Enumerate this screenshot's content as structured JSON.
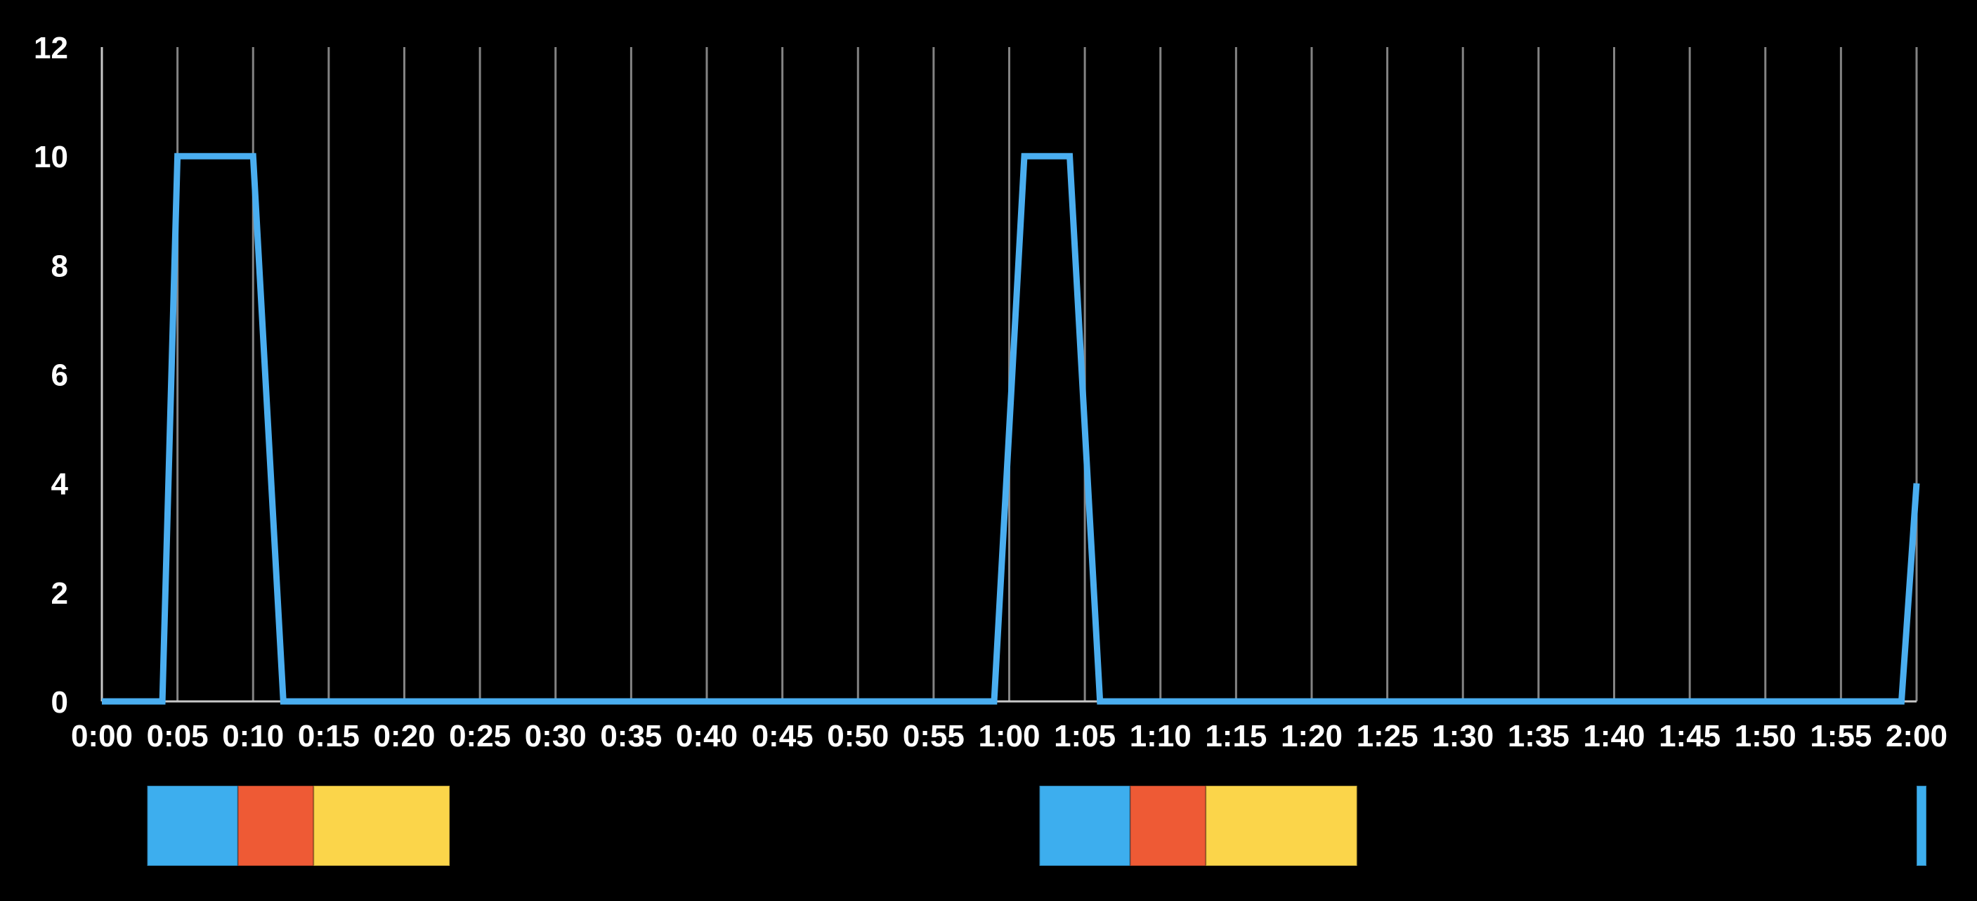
{
  "chart_data": {
    "type": "line",
    "title": "",
    "xlabel": "",
    "ylabel": "",
    "x_unit": "m:ss",
    "xlim": [
      0,
      120
    ],
    "ylim": [
      0,
      12
    ],
    "x_ticks": [
      "0:00",
      "0:05",
      "0:10",
      "0:15",
      "0:20",
      "0:25",
      "0:30",
      "0:35",
      "0:40",
      "0:45",
      "0:50",
      "0:55",
      "1:00",
      "1:05",
      "1:10",
      "1:15",
      "1:20",
      "1:25",
      "1:30",
      "1:35",
      "1:40",
      "1:45",
      "1:50",
      "1:55",
      "2:00"
    ],
    "y_ticks": [
      "0",
      "2",
      "4",
      "6",
      "8",
      "10",
      "12"
    ],
    "grid": "vertical",
    "legend": "none",
    "series": [
      {
        "color": "#4aaef0",
        "points": [
          [
            "0:00",
            0
          ],
          [
            "0:04",
            0
          ],
          [
            "0:05",
            10
          ],
          [
            "0:10",
            10
          ],
          [
            "0:12",
            0
          ],
          [
            "0:59",
            0
          ],
          [
            "1:01",
            10
          ],
          [
            "1:04",
            10
          ],
          [
            "1:06",
            0
          ],
          [
            "1:59",
            0
          ],
          [
            "2:00",
            4
          ]
        ]
      }
    ],
    "timeline_segments": [
      {
        "start": "0:03",
        "end": "0:09",
        "color": "#3daeee"
      },
      {
        "start": "0:09",
        "end": "0:14",
        "color": "#ee5a35"
      },
      {
        "start": "0:14",
        "end": "0:23",
        "color": "#fbd54a"
      },
      {
        "start": "1:02",
        "end": "1:08",
        "color": "#3daeee"
      },
      {
        "start": "1:08",
        "end": "1:13",
        "color": "#ee5a35"
      },
      {
        "start": "1:13",
        "end": "1:23",
        "color": "#fbd54a"
      },
      {
        "start": "2:00",
        "end": "2:00",
        "color": "#3daeee"
      }
    ]
  }
}
